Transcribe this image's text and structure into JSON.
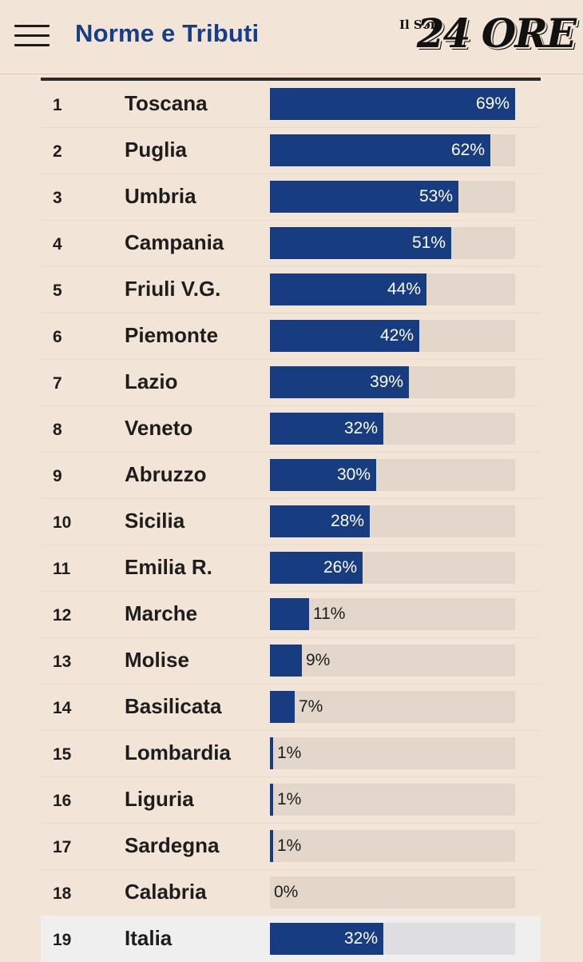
{
  "header": {
    "section_title": "Norme e Tributi",
    "logo_small": "Il Sole",
    "logo_big": "24 ORE",
    "menu_icon": "hamburger-menu-icon"
  },
  "colors": {
    "bar": "#173c7f",
    "track": "#e3d6ca",
    "background": "#f3e4d8",
    "title": "#163e86"
  },
  "chart_data": {
    "type": "bar",
    "orientation": "horizontal",
    "value_unit": "%",
    "xlim": [
      0,
      69
    ],
    "rows": [
      {
        "rank": "1",
        "region": "Toscana",
        "value": 69,
        "label": "69%"
      },
      {
        "rank": "2",
        "region": "Puglia",
        "value": 62,
        "label": "62%"
      },
      {
        "rank": "3",
        "region": "Umbria",
        "value": 53,
        "label": "53%"
      },
      {
        "rank": "4",
        "region": "Campania",
        "value": 51,
        "label": "51%"
      },
      {
        "rank": "5",
        "region": "Friuli V.G.",
        "value": 44,
        "label": "44%"
      },
      {
        "rank": "6",
        "region": "Piemonte",
        "value": 42,
        "label": "42%"
      },
      {
        "rank": "7",
        "region": "Lazio",
        "value": 39,
        "label": "39%"
      },
      {
        "rank": "8",
        "region": "Veneto",
        "value": 32,
        "label": "32%"
      },
      {
        "rank": "9",
        "region": "Abruzzo",
        "value": 30,
        "label": "30%"
      },
      {
        "rank": "10",
        "region": "Sicilia",
        "value": 28,
        "label": "28%"
      },
      {
        "rank": "11",
        "region": "Emilia R.",
        "value": 26,
        "label": "26%"
      },
      {
        "rank": "12",
        "region": "Marche",
        "value": 11,
        "label": "11%"
      },
      {
        "rank": "13",
        "region": "Molise",
        "value": 9,
        "label": "9%"
      },
      {
        "rank": "14",
        "region": "Basilicata",
        "value": 7,
        "label": "7%"
      },
      {
        "rank": "15",
        "region": "Lombardia",
        "value": 1,
        "label": "1%"
      },
      {
        "rank": "16",
        "region": "Liguria",
        "value": 1,
        "label": "1%"
      },
      {
        "rank": "17",
        "region": "Sardegna",
        "value": 1,
        "label": "1%"
      },
      {
        "rank": "18",
        "region": "Calabria",
        "value": 0,
        "label": "0%"
      },
      {
        "rank": "19",
        "region": "Italia",
        "value": 32,
        "label": "32%",
        "highlight": true
      }
    ]
  }
}
